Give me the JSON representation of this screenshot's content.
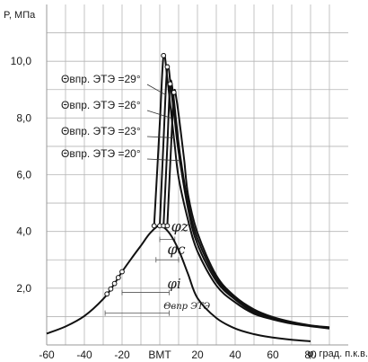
{
  "chart_data": {
    "type": "line",
    "title": "",
    "ylabel": "P, МПа",
    "xlabel": "φ, град. п.к.в.",
    "xlim": [
      -60,
      100
    ],
    "ylim": [
      0,
      12
    ],
    "grid": "both",
    "x_ticks": [
      {
        "v": -60,
        "label": "-60"
      },
      {
        "v": -40,
        "label": "-40"
      },
      {
        "v": -20,
        "label": "-20"
      },
      {
        "v": 0,
        "label": "ВМТ"
      },
      {
        "v": 20,
        "label": "20"
      },
      {
        "v": 40,
        "label": "40"
      },
      {
        "v": 60,
        "label": "60"
      },
      {
        "v": 80,
        "label": "80"
      }
    ],
    "y_ticks": [
      {
        "v": 2,
        "label": "2,0"
      },
      {
        "v": 4,
        "label": "4,0"
      },
      {
        "v": 6,
        "label": "6,0"
      },
      {
        "v": 8,
        "label": "8,0"
      },
      {
        "v": 10,
        "label": "10,0"
      }
    ],
    "legend": [
      "Θвпр. ЭТЭ =29°",
      "Θвпр. ЭТЭ =26°",
      "Θвпр. ЭТЭ =23°",
      "Θвпр. ЭТЭ =20°"
    ],
    "phase_labels": [
      "φz",
      "φc",
      "φi",
      "Θвпр ЭТЭ"
    ],
    "compression": [
      [
        -60,
        0.4
      ],
      [
        -50,
        0.65
      ],
      [
        -40,
        1.02
      ],
      [
        -30,
        1.62
      ],
      [
        -25,
        2.06
      ],
      [
        -20,
        2.58
      ],
      [
        -15,
        3.05
      ],
      [
        -10,
        3.5
      ],
      [
        -5,
        3.95
      ],
      [
        0,
        4.2
      ],
      [
        5,
        3.95
      ],
      [
        10,
        3.35
      ],
      [
        15,
        2.5
      ],
      [
        20,
        1.65
      ],
      [
        30,
        0.95
      ],
      [
        40,
        0.58
      ],
      [
        50,
        0.38
      ],
      [
        60,
        0.26
      ],
      [
        70,
        0.18
      ],
      [
        80,
        0.13
      ]
    ],
    "series": [
      {
        "name": "Θвпр. ЭТЭ =29°",
        "points": [
          [
            -3,
            4.2
          ],
          [
            0,
            7.8
          ],
          [
            2,
            10.2
          ],
          [
            4,
            9.4
          ],
          [
            6,
            8.2
          ],
          [
            8,
            7.0
          ],
          [
            10,
            5.9
          ],
          [
            15,
            4.4
          ],
          [
            20,
            3.3
          ],
          [
            30,
            2.1
          ],
          [
            40,
            1.5
          ],
          [
            50,
            1.1
          ],
          [
            60,
            0.9
          ],
          [
            70,
            0.75
          ],
          [
            80,
            0.66
          ],
          [
            90,
            0.58
          ]
        ]
      },
      {
        "name": "Θвпр. ЭТЭ =26°",
        "points": [
          [
            0,
            4.2
          ],
          [
            2,
            7.2
          ],
          [
            4,
            9.8
          ],
          [
            6,
            9.0
          ],
          [
            8,
            7.9
          ],
          [
            10,
            6.8
          ],
          [
            15,
            4.8
          ],
          [
            20,
            3.55
          ],
          [
            30,
            2.25
          ],
          [
            40,
            1.6
          ],
          [
            50,
            1.15
          ],
          [
            60,
            0.92
          ],
          [
            70,
            0.77
          ],
          [
            80,
            0.67
          ],
          [
            90,
            0.6
          ]
        ]
      },
      {
        "name": "Θвпр. ЭТЭ =23°",
        "points": [
          [
            2,
            4.2
          ],
          [
            4,
            7.0
          ],
          [
            5.5,
            9.2
          ],
          [
            7,
            8.9
          ],
          [
            9,
            7.7
          ],
          [
            11,
            6.6
          ],
          [
            15,
            5.0
          ],
          [
            20,
            3.75
          ],
          [
            30,
            2.35
          ],
          [
            40,
            1.65
          ],
          [
            50,
            1.2
          ],
          [
            60,
            0.95
          ],
          [
            70,
            0.79
          ],
          [
            80,
            0.68
          ],
          [
            90,
            0.61
          ]
        ]
      },
      {
        "name": "Θвпр. ЭТЭ =20°",
        "points": [
          [
            4,
            4.2
          ],
          [
            6,
            7.0
          ],
          [
            7.5,
            8.9
          ],
          [
            9,
            8.6
          ],
          [
            11,
            7.6
          ],
          [
            13,
            6.5
          ],
          [
            15,
            5.3
          ],
          [
            20,
            3.95
          ],
          [
            30,
            2.45
          ],
          [
            40,
            1.7
          ],
          [
            50,
            1.25
          ],
          [
            60,
            0.98
          ],
          [
            70,
            0.81
          ],
          [
            80,
            0.69
          ],
          [
            90,
            0.62
          ]
        ]
      }
    ]
  }
}
